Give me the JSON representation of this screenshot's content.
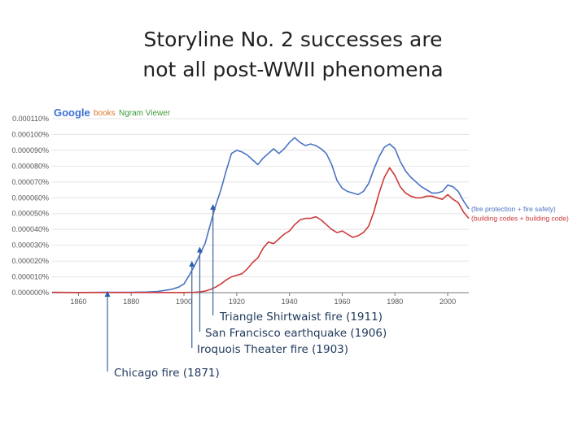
{
  "slide": {
    "title_line1": "Storyline No. 2 successes are",
    "title_line2": "not all post-WWII phenomena"
  },
  "logo": {
    "google": "Google",
    "books": "books",
    "ngram": "Ngram Viewer"
  },
  "chart_data": {
    "type": "line",
    "title": "",
    "xlabel": "",
    "ylabel": "",
    "xlim": [
      1850,
      2008
    ],
    "ylim": [
      0,
      0.00011
    ],
    "x_ticks": [
      1860,
      1880,
      1900,
      1920,
      1940,
      1960,
      1980,
      2000
    ],
    "y_ticks": [
      "0.000000%",
      "0.000010%",
      "0.000020%",
      "0.000030%",
      "0.000040%",
      "0.000050%",
      "0.000060%",
      "0.000070%",
      "0.000080%",
      "0.000090%",
      "0.000100%",
      "0.000110%"
    ],
    "grid": true,
    "legend": "right, at line ends",
    "series": [
      {
        "name": "(fire protection + fire safety)",
        "color": "#4a72c4",
        "points": [
          [
            1850,
            1e-07
          ],
          [
            1860,
            1e-07
          ],
          [
            1870,
            2e-07
          ],
          [
            1880,
            2e-07
          ],
          [
            1886,
            4e-07
          ],
          [
            1890,
            7e-07
          ],
          [
            1895,
            2e-06
          ],
          [
            1898,
            3.5e-06
          ],
          [
            1900,
            5.5e-06
          ],
          [
            1902,
            1.1e-05
          ],
          [
            1904,
            1.7e-05
          ],
          [
            1906,
            2.4e-05
          ],
          [
            1908,
            3.1e-05
          ],
          [
            1910,
            4.3e-05
          ],
          [
            1912,
            5.5e-05
          ],
          [
            1914,
            6.5e-05
          ],
          [
            1916,
            7.7e-05
          ],
          [
            1918,
            8.8e-05
          ],
          [
            1920,
            9e-05
          ],
          [
            1922,
            8.9e-05
          ],
          [
            1924,
            8.7e-05
          ],
          [
            1926,
            8.4e-05
          ],
          [
            1928,
            8.1e-05
          ],
          [
            1930,
            8.5e-05
          ],
          [
            1932,
            8.8e-05
          ],
          [
            1934,
            9.1e-05
          ],
          [
            1936,
            8.8e-05
          ],
          [
            1938,
            9.1e-05
          ],
          [
            1940,
            9.5e-05
          ],
          [
            1942,
            9.8e-05
          ],
          [
            1944,
            9.5e-05
          ],
          [
            1946,
            9.3e-05
          ],
          [
            1948,
            9.4e-05
          ],
          [
            1950,
            9.3e-05
          ],
          [
            1952,
            9.1e-05
          ],
          [
            1954,
            8.8e-05
          ],
          [
            1956,
            8.1e-05
          ],
          [
            1958,
            7.1e-05
          ],
          [
            1960,
            6.6e-05
          ],
          [
            1962,
            6.4e-05
          ],
          [
            1964,
            6.3e-05
          ],
          [
            1966,
            6.2e-05
          ],
          [
            1968,
            6.4e-05
          ],
          [
            1970,
            6.9e-05
          ],
          [
            1972,
            7.8e-05
          ],
          [
            1974,
            8.6e-05
          ],
          [
            1976,
            9.2e-05
          ],
          [
            1978,
            9.4e-05
          ],
          [
            1980,
            9.1e-05
          ],
          [
            1982,
            8.3e-05
          ],
          [
            1984,
            7.7e-05
          ],
          [
            1986,
            7.3e-05
          ],
          [
            1988,
            7e-05
          ],
          [
            1990,
            6.7e-05
          ],
          [
            1992,
            6.5e-05
          ],
          [
            1994,
            6.3e-05
          ],
          [
            1996,
            6.3e-05
          ],
          [
            1998,
            6.4e-05
          ],
          [
            2000,
            6.8e-05
          ],
          [
            2002,
            6.7e-05
          ],
          [
            2004,
            6.4e-05
          ],
          [
            2006,
            5.8e-05
          ],
          [
            2008,
            5.3e-05
          ]
        ]
      },
      {
        "name": "(building codes + building code)",
        "color": "#cc3a3a",
        "points": [
          [
            1850,
            2e-07
          ],
          [
            1860,
            1e-07
          ],
          [
            1870,
            1e-07
          ],
          [
            1880,
            1e-07
          ],
          [
            1890,
            1e-07
          ],
          [
            1900,
            1e-07
          ],
          [
            1904,
            2e-07
          ],
          [
            1906,
            5e-07
          ],
          [
            1908,
            1e-06
          ],
          [
            1910,
            2e-06
          ],
          [
            1912,
            3.5e-06
          ],
          [
            1914,
            5.5e-06
          ],
          [
            1916,
            8e-06
          ],
          [
            1918,
            1e-05
          ],
          [
            1920,
            1.1e-05
          ],
          [
            1922,
            1.2e-05
          ],
          [
            1924,
            1.5e-05
          ],
          [
            1926,
            1.9e-05
          ],
          [
            1928,
            2.2e-05
          ],
          [
            1930,
            2.8e-05
          ],
          [
            1932,
            3.2e-05
          ],
          [
            1934,
            3.1e-05
          ],
          [
            1936,
            3.4e-05
          ],
          [
            1938,
            3.7e-05
          ],
          [
            1940,
            3.9e-05
          ],
          [
            1942,
            4.3e-05
          ],
          [
            1944,
            4.6e-05
          ],
          [
            1946,
            4.7e-05
          ],
          [
            1948,
            4.7e-05
          ],
          [
            1950,
            4.8e-05
          ],
          [
            1952,
            4.6e-05
          ],
          [
            1954,
            4.3e-05
          ],
          [
            1956,
            4e-05
          ],
          [
            1958,
            3.8e-05
          ],
          [
            1960,
            3.9e-05
          ],
          [
            1962,
            3.7e-05
          ],
          [
            1964,
            3.5e-05
          ],
          [
            1966,
            3.6e-05
          ],
          [
            1968,
            3.8e-05
          ],
          [
            1970,
            4.2e-05
          ],
          [
            1972,
            5.1e-05
          ],
          [
            1974,
            6.3e-05
          ],
          [
            1976,
            7.3e-05
          ],
          [
            1978,
            7.9e-05
          ],
          [
            1980,
            7.4e-05
          ],
          [
            1982,
            6.7e-05
          ],
          [
            1984,
            6.3e-05
          ],
          [
            1986,
            6.1e-05
          ],
          [
            1988,
            6e-05
          ],
          [
            1990,
            6e-05
          ],
          [
            1992,
            6.1e-05
          ],
          [
            1994,
            6.1e-05
          ],
          [
            1996,
            6e-05
          ],
          [
            1998,
            5.9e-05
          ],
          [
            2000,
            6.2e-05
          ],
          [
            2002,
            5.9e-05
          ],
          [
            2004,
            5.7e-05
          ],
          [
            2006,
            5.1e-05
          ],
          [
            2008,
            4.7e-05
          ]
        ]
      }
    ],
    "annotations": [
      {
        "label": "Triangle Shirtwaist fire (1911)",
        "year": 1911,
        "target_value": 5.5e-05
      },
      {
        "label": "San Francisco earthquake (1906)",
        "year": 1906,
        "target_value": 2.8e-05
      },
      {
        "label": "Iroquois Theater fire (1903)",
        "year": 1903,
        "target_value": 1.9e-05
      },
      {
        "label": "Chicago fire (1871)",
        "year": 1871,
        "target_value": 0.0
      }
    ]
  }
}
